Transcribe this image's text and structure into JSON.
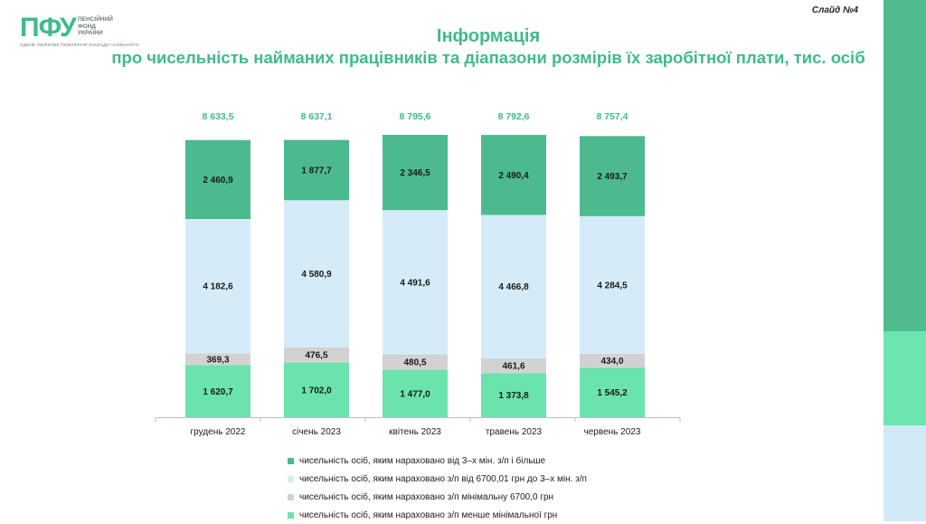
{
  "header": {
    "logo_text": "ПФУ",
    "logo_lines": [
      "ПЕНСІЙНИЙ",
      "ФОНД",
      "УКРАЇНИ"
    ],
    "logo_tagline": "ЄДИНЕ ОБЛІКОВЕ ПОКОЛІННЯ ЗАКЛАДИ НАЙМАНОГО",
    "slide_label": "Слайд №4",
    "title_line1": "Інформація",
    "title_line2": "про чисельність найманих працівників та діапазони розмірів їх заробітної плати, тис. осіб"
  },
  "colors": {
    "accent": "#3fbb8c",
    "side_bar_top": "#4fbb8f",
    "side_bar_mid": "#6de5b0",
    "side_bar_bottom": "#d2eaf6"
  },
  "chart_data": {
    "type": "bar",
    "stacked": true,
    "categories": [
      "грудень 2022",
      "січень 2023",
      "квітень 2023",
      "травень 2023",
      "червень 2023"
    ],
    "totals": [
      "8 633,5",
      "8 637,1",
      "8 795,6",
      "8 792,6",
      "8 757,4"
    ],
    "series": [
      {
        "name": "чисельність осіб, яким нараховано з/п менше мінімальної грн",
        "color": "#6be3ac",
        "values": [
          1620.7,
          1702.0,
          1477.0,
          1373.8,
          1545.2
        ],
        "labels": [
          "1 620,7",
          "1 702,0",
          "1 477,0",
          "1 373,8",
          "1 545,2"
        ]
      },
      {
        "name": "чисельність осіб, яким нараховано з/п  мінімальну 6700,0 грн",
        "color": "#d2d2d2",
        "values": [
          369.3,
          476.5,
          480.5,
          461.6,
          434.0
        ],
        "labels": [
          "369,3",
          "476,5",
          "480,5",
          "461,6",
          "434,0"
        ]
      },
      {
        "name": "чисельність осіб, яким нараховано з/п від 6700,01 грн до 3–х мін. з/п",
        "color": "#d5ecf8",
        "values": [
          4182.6,
          4580.9,
          4491.6,
          4466.8,
          4284.5
        ],
        "labels": [
          "4 182,6",
          "4 580,9",
          "4 491,6",
          "4 466,8",
          "4 284,5"
        ]
      },
      {
        "name": "чисельність осіб, яким нараховано від 3–х мін. з/п і більше",
        "color": "#4cba8e",
        "values": [
          2460.9,
          1877.7,
          2346.5,
          2490.4,
          2493.7
        ],
        "labels": [
          "2 460,9",
          "1 877,7",
          "2 346,5",
          "2 490,4",
          "2 493,7"
        ]
      }
    ],
    "legend_order": [
      3,
      2,
      1,
      0
    ],
    "legend_position": "bottom",
    "grid": false
  }
}
